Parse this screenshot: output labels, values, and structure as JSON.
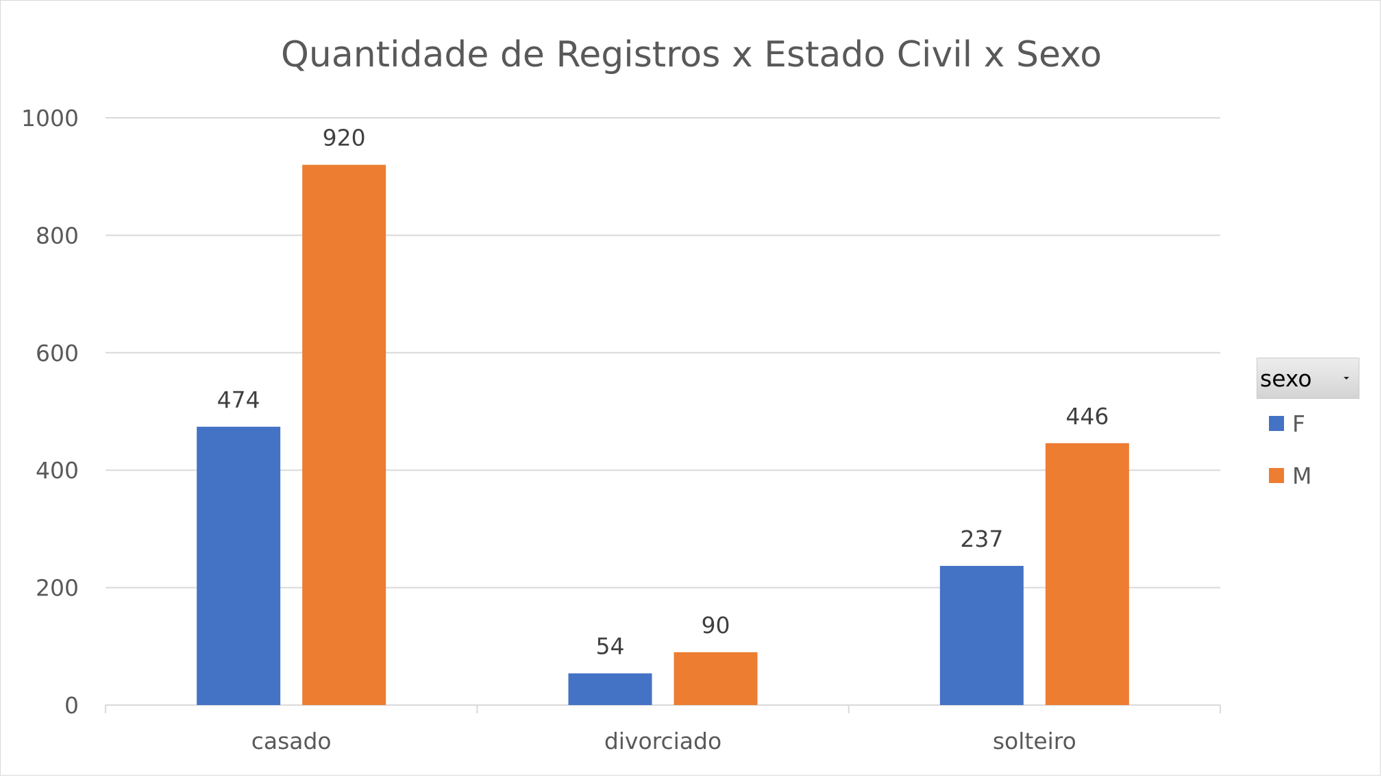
{
  "chart_data": {
    "type": "bar",
    "title": "Quantidade de Registros x Estado Civil x Sexo",
    "categories": [
      "casado",
      "divorciado",
      "solteiro"
    ],
    "series": [
      {
        "name": "F",
        "values": [
          474,
          54,
          237
        ],
        "color": "#4472c4"
      },
      {
        "name": "M",
        "values": [
          920,
          90,
          446
        ],
        "color": "#ed7d31"
      }
    ],
    "ylim": [
      0,
      1000
    ],
    "yticks": [
      0,
      200,
      400,
      600,
      800,
      1000
    ],
    "grid": true,
    "data_labels": true,
    "legend": {
      "title": "sexo",
      "placement": "right"
    }
  }
}
